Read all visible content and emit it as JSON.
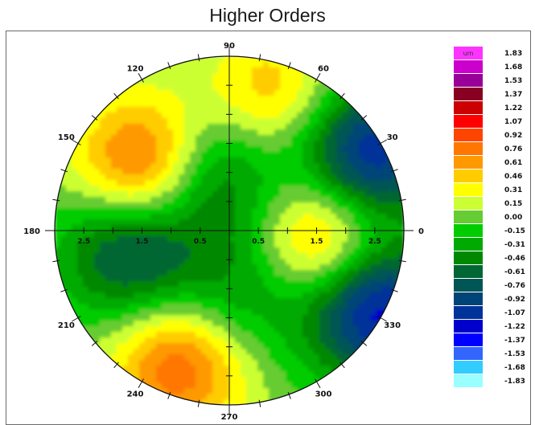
{
  "chart_data": {
    "type": "heatmap",
    "title": "Higher Orders",
    "plot_kind": "polar wavefront contour map",
    "angle_labels": [
      "90",
      "60",
      "30",
      "0",
      "330",
      "300",
      "270",
      "240",
      "210",
      "180",
      "150",
      "120"
    ],
    "angle_values": [
      90,
      60,
      30,
      0,
      330,
      300,
      270,
      240,
      210,
      180,
      150,
      120
    ],
    "radial_tick_labels": [
      "2.5",
      "1.5",
      "0.5",
      "0.5",
      "1.5",
      "2.5"
    ],
    "radial_tick_values": [
      -2.5,
      -1.5,
      -0.5,
      0.5,
      1.5,
      2.5
    ],
    "radius": 3.0,
    "colorbar": {
      "unit_label": "um",
      "tick_labels": [
        "1.83",
        "1.68",
        "1.53",
        "1.37",
        "1.22",
        "1.07",
        "0.92",
        "0.76",
        "0.61",
        "0.46",
        "0.31",
        "0.15",
        "0.00",
        "-0.15",
        "-0.31",
        "-0.46",
        "-0.61",
        "-0.76",
        "-0.92",
        "-1.07",
        "-1.22",
        "-1.37",
        "-1.53",
        "-1.68",
        "-1.83"
      ],
      "colors": [
        "#ff33ff",
        "#cc00cc",
        "#990099",
        "#880022",
        "#cc0000",
        "#ff0000",
        "#ff4400",
        "#ff7700",
        "#ff9900",
        "#ffcc00",
        "#ffff00",
        "#ccff33",
        "#66cc33",
        "#00cc00",
        "#00aa00",
        "#008800",
        "#006633",
        "#005555",
        "#004477",
        "#003399",
        "#0000cc",
        "#0000ff",
        "#3366ff",
        "#33ccff",
        "#99ffff"
      ]
    },
    "field_features": [
      {
        "x": 0.7,
        "y": 2.3,
        "value": 0.55
      },
      {
        "x": -1.4,
        "y": 1.1,
        "value": 1.05
      },
      {
        "x": -0.3,
        "y": 1.0,
        "value": -0.75
      },
      {
        "x": 2.4,
        "y": 1.3,
        "value": -1.2
      },
      {
        "x": 1.7,
        "y": -0.2,
        "value": 0.88
      },
      {
        "x": -1.7,
        "y": -0.35,
        "value": -0.85
      },
      {
        "x": 2.5,
        "y": -1.3,
        "value": -1.35
      },
      {
        "x": -0.85,
        "y": -2.3,
        "value": 0.85
      },
      {
        "x": 0.2,
        "y": -1.1,
        "value": -0.45
      }
    ]
  }
}
